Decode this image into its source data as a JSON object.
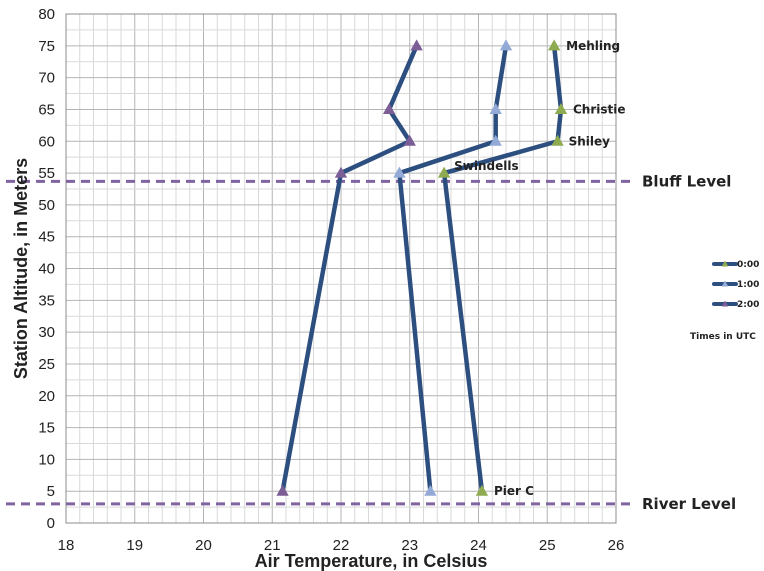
{
  "chart_data": {
    "type": "line",
    "title": "",
    "xlabel": "Air Temperature, in Celsius",
    "ylabel": "Station Altitude, in Meters",
    "xlim": [
      18,
      26
    ],
    "ylim": [
      0,
      80
    ],
    "x_ticks": [
      "18",
      "19",
      "20",
      "21",
      "22",
      "23",
      "24",
      "25",
      "26"
    ],
    "y_ticks": [
      "0",
      "5",
      "10",
      "15",
      "20",
      "25",
      "30",
      "35",
      "40",
      "45",
      "50",
      "55",
      "60",
      "65",
      "70",
      "75",
      "80"
    ],
    "grid": true,
    "line_color": "#2d4f80",
    "series": [
      {
        "name": "0:00",
        "marker_color": "#8eab4f",
        "points": [
          {
            "x": 24.05,
            "y": 5
          },
          {
            "x": 23.5,
            "y": 55
          },
          {
            "x": 25.15,
            "y": 60
          },
          {
            "x": 25.2,
            "y": 65
          },
          {
            "x": 25.1,
            "y": 75
          }
        ]
      },
      {
        "name": "1:00",
        "marker_color": "#93a9d6",
        "points": [
          {
            "x": 23.3,
            "y": 5
          },
          {
            "x": 22.85,
            "y": 55
          },
          {
            "x": 24.25,
            "y": 60
          },
          {
            "x": 24.25,
            "y": 65
          },
          {
            "x": 24.4,
            "y": 75
          }
        ]
      },
      {
        "name": "2:00",
        "marker_color": "#7b5e96",
        "points": [
          {
            "x": 21.15,
            "y": 5
          },
          {
            "x": 22.0,
            "y": 55
          },
          {
            "x": 23.0,
            "y": 60
          },
          {
            "x": 22.7,
            "y": 65
          },
          {
            "x": 23.1,
            "y": 75
          }
        ]
      }
    ],
    "station_labels": [
      {
        "text": "Pier C",
        "x": 24.05,
        "y": 5
      },
      {
        "text": "Swindells",
        "x": 23.5,
        "y": 55
      },
      {
        "text": "Shiley",
        "x": 25.15,
        "y": 60
      },
      {
        "text": "Christie",
        "x": 25.2,
        "y": 65
      },
      {
        "text": "Mehling",
        "x": 25.1,
        "y": 75
      }
    ],
    "reference_lines": [
      {
        "label": "Bluff Level",
        "y": 53.7,
        "color": "#8064a2"
      },
      {
        "label": "River Level",
        "y": 3,
        "color": "#8064a2"
      }
    ],
    "legend": {
      "placement": "right",
      "caption": "Times in UTC"
    }
  }
}
